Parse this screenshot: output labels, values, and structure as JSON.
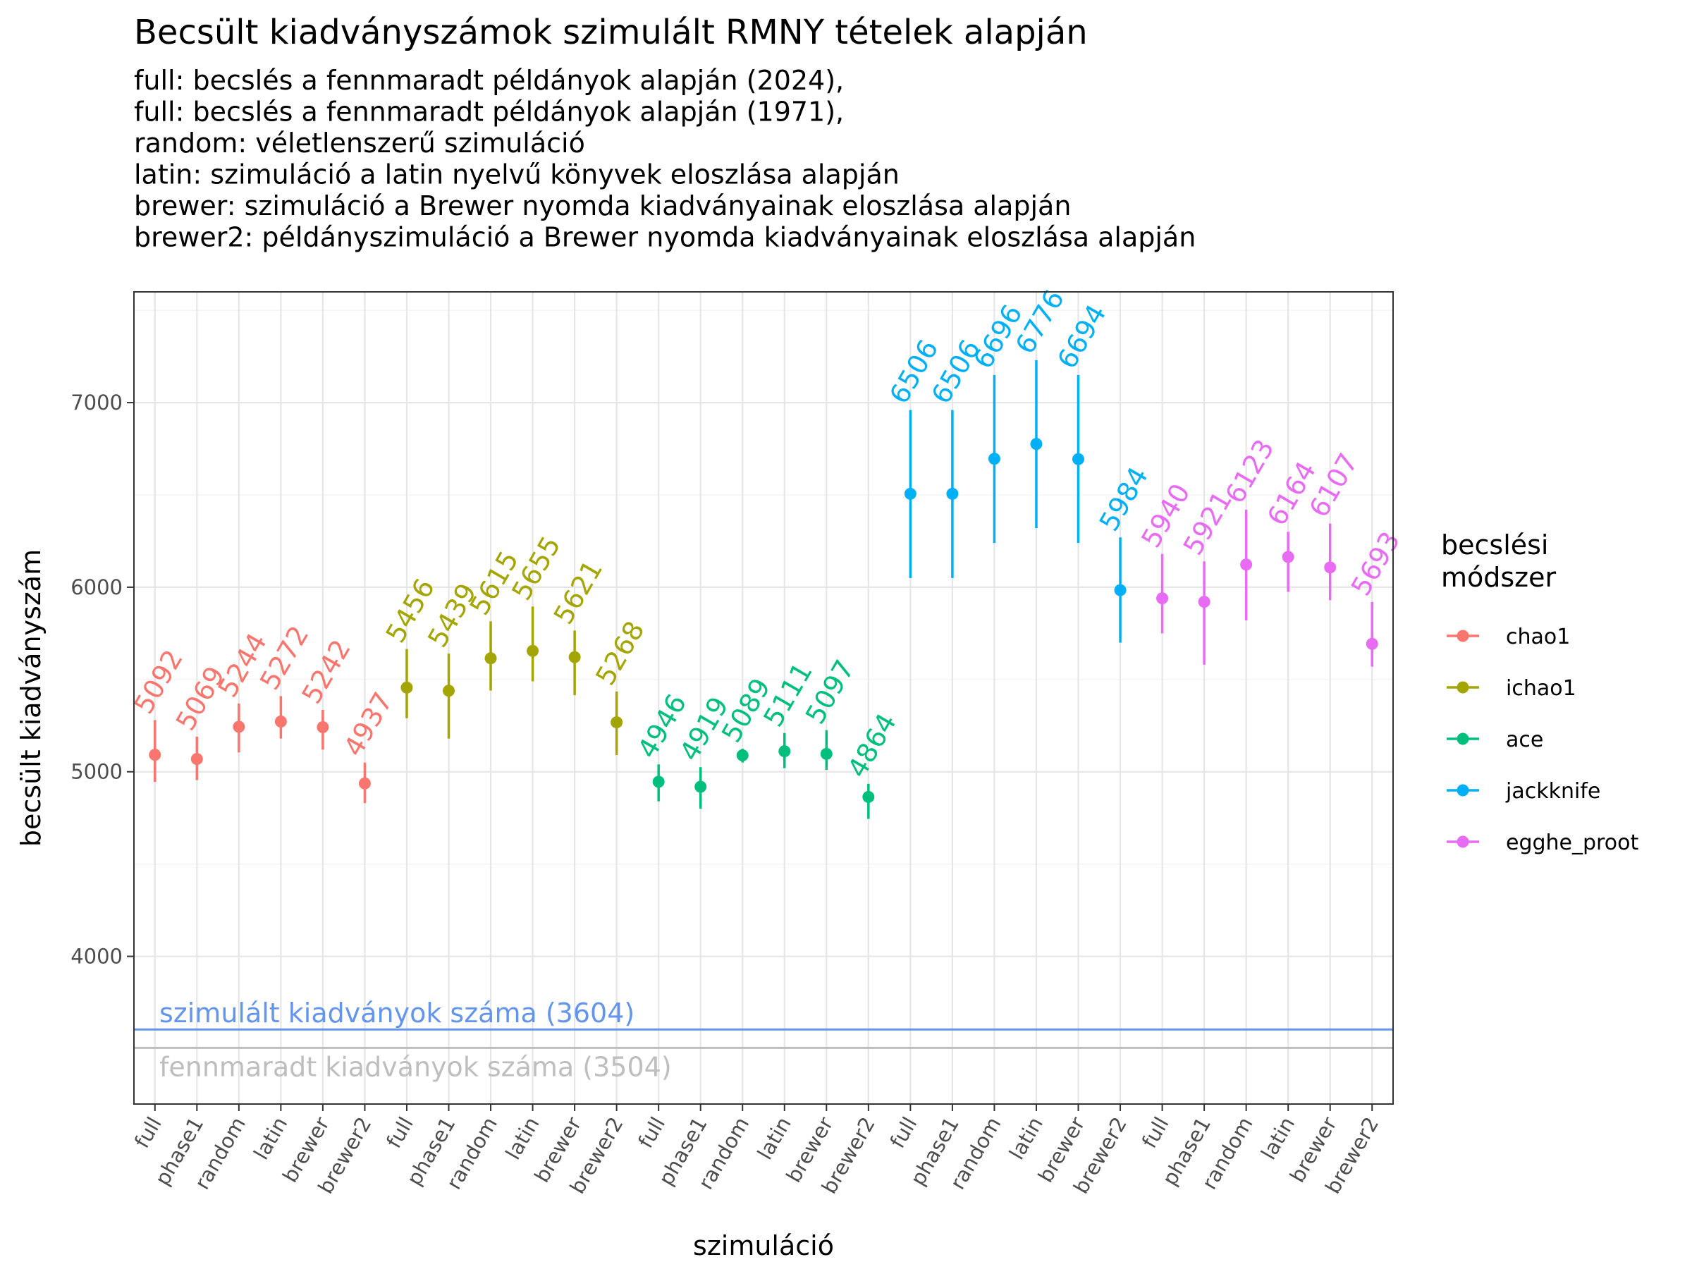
{
  "chart_data": {
    "type": "scatter",
    "title": "Becsült kiadványszámok szimulált RMNY tételek alapján",
    "subtitle": [
      "full: becslés a fennmaradt példányok alapján (2024),",
      "full: becslés a fennmaradt példányok alapján (1971),",
      "random: véletlenszerű szimuláció",
      "latin: szimuláció a latin nyelvű könyvek eloszlása alapján",
      "brewer: szimuláció a Brewer nyomda kiadványainak eloszlása alapján",
      "brewer2: példányszimuláció a Brewer nyomda kiadványainak eloszlása alapján"
    ],
    "xlabel": "szimuláció",
    "ylabel": "becsült kiadványszám",
    "ylim": [
      3200,
      7600
    ],
    "y_ticks": [
      4000,
      5000,
      6000,
      7000
    ],
    "x_categories": [
      "full",
      "phase1",
      "random",
      "latin",
      "brewer",
      "brewer2"
    ],
    "grid": true,
    "legend": {
      "title": [
        "becslési",
        "módszer"
      ],
      "position": "right"
    },
    "series": [
      {
        "name": "chao1",
        "color": "#F8766D",
        "values": [
          5092,
          5069,
          5244,
          5272,
          5242,
          4937
        ],
        "lower": [
          4945,
          4955,
          5105,
          5180,
          5120,
          4830
        ],
        "upper": [
          5280,
          5190,
          5370,
          5410,
          5335,
          5050
        ]
      },
      {
        "name": "ichao1",
        "color": "#A3A500",
        "values": [
          5456,
          5439,
          5615,
          5655,
          5621,
          5268
        ],
        "lower": [
          5290,
          5180,
          5440,
          5490,
          5415,
          5090
        ],
        "upper": [
          5665,
          5640,
          5815,
          5895,
          5765,
          5435
        ]
      },
      {
        "name": "ace",
        "color": "#00BF7D",
        "values": [
          4946,
          4919,
          5089,
          5111,
          5097,
          4864
        ],
        "lower": [
          4840,
          4800,
          5050,
          5020,
          5010,
          4745
        ],
        "upper": [
          5040,
          5025,
          5125,
          5210,
          5225,
          4935
        ]
      },
      {
        "name": "jackknife",
        "color": "#00B0F6",
        "values": [
          6506,
          6506,
          6696,
          6776,
          6694,
          5984
        ],
        "lower": [
          6050,
          6050,
          6240,
          6320,
          6240,
          5700
        ],
        "upper": [
          6960,
          6960,
          7150,
          7230,
          7150,
          6270
        ]
      },
      {
        "name": "egghe_proot",
        "color": "#E76BF3",
        "values": [
          5940,
          5921,
          6123,
          6164,
          6107,
          5693
        ],
        "lower": [
          5750,
          5580,
          5820,
          5975,
          5930,
          5570
        ],
        "upper": [
          6180,
          6140,
          6420,
          6300,
          6345,
          5920
        ]
      }
    ],
    "reference_lines": [
      {
        "label": "szimulált kiadványok száma (3604)",
        "y": 3604,
        "color": "#6495ED"
      },
      {
        "label": "fennmaradt kiadványok száma (3504)",
        "y": 3504,
        "color": "#BEBEBE"
      }
    ]
  }
}
